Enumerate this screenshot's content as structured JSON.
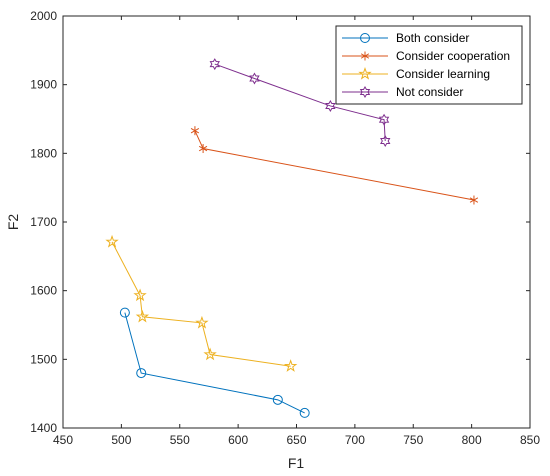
{
  "chart_data": {
    "type": "line",
    "title": "",
    "xlabel": "F1",
    "ylabel": "F2",
    "xlim": [
      450,
      850
    ],
    "ylim": [
      1400,
      2000
    ],
    "xticks": [
      450,
      500,
      550,
      600,
      650,
      700,
      750,
      800,
      850
    ],
    "yticks": [
      1400,
      1500,
      1600,
      1700,
      1800,
      1900,
      2000
    ],
    "grid": false,
    "legend_position": "top-right",
    "series": [
      {
        "name": "Both consider",
        "color": "#0072BD",
        "marker": "circle",
        "x": [
          503,
          517,
          634,
          657
        ],
        "y": [
          1568,
          1480,
          1441,
          1422
        ]
      },
      {
        "name": "Consider cooperation",
        "color": "#D95319",
        "marker": "asterisk",
        "x": [
          563,
          570,
          802
        ],
        "y": [
          1833,
          1807,
          1732
        ]
      },
      {
        "name": "Consider learning",
        "color": "#EDB120",
        "marker": "pentagram",
        "x": [
          492,
          516,
          518,
          569,
          576,
          645
        ],
        "y": [
          1671,
          1593,
          1562,
          1553,
          1507,
          1490
        ]
      },
      {
        "name": "Not consider",
        "color": "#7E2F8E",
        "marker": "hexagram",
        "x": [
          580,
          614,
          679,
          725,
          726
        ],
        "y": [
          1930,
          1909,
          1869,
          1849,
          1818
        ]
      }
    ]
  }
}
